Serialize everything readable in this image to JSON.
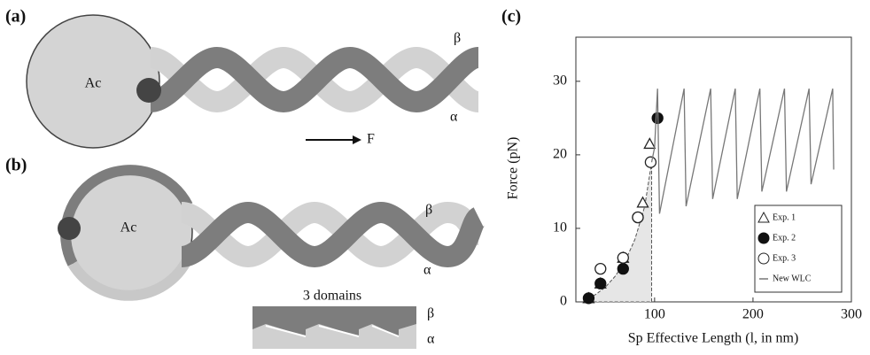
{
  "panels": {
    "a": {
      "label": "(a)",
      "ac": "Ac",
      "beta": "β",
      "alpha": "α",
      "force": "F"
    },
    "b": {
      "label": "(b)",
      "ac": "Ac",
      "beta": "β",
      "alpha": "α",
      "domains": "3 domains",
      "domain_beta": "β",
      "domain_alpha": "α"
    }
  },
  "chart_data": {
    "type": "scatter",
    "label": "(c)",
    "xlabel": "Sp Effective Length (l, in nm)",
    "ylabel": "Force (pN)",
    "xlim": [
      20,
      300
    ],
    "xticks": [
      100,
      200,
      300
    ],
    "ylim": [
      0,
      36
    ],
    "yticks": [
      0,
      10,
      20,
      30
    ],
    "legend": "lower right",
    "series": [
      {
        "name": "Exp. 1",
        "marker": "triangle-open",
        "color": "#222",
        "x": [
          33,
          45,
          68,
          88,
          95
        ],
        "values": [
          0.5,
          2.5,
          6,
          13.5,
          21.5
        ]
      },
      {
        "name": "Exp. 2",
        "marker": "circle-filled",
        "color": "#111",
        "x": [
          33,
          45,
          68,
          83,
          103
        ],
        "values": [
          0.5,
          2.5,
          4.5,
          11.5,
          25
        ]
      },
      {
        "name": "Exp. 3",
        "marker": "circle-open",
        "color": "#222",
        "x": [
          45,
          68,
          83,
          96
        ],
        "values": [
          4.5,
          6,
          11.5,
          19
        ]
      },
      {
        "name": "New WLC",
        "marker": "line",
        "color": "#777",
        "x": [
          97,
          100,
          103,
          105,
          130,
          132,
          157,
          159,
          182,
          184,
          207,
          209,
          232,
          234,
          257,
          259,
          281,
          282
        ],
        "values": [
          19,
          21,
          29,
          12,
          29,
          13,
          29,
          14,
          29,
          14,
          29,
          15,
          29,
          15,
          29,
          16,
          29,
          18
        ]
      }
    ],
    "fit": {
      "x": [
        30,
        40,
        50,
        60,
        70,
        80,
        90,
        97
      ],
      "values": [
        0.3,
        1,
        2,
        3.5,
        5.5,
        8.5,
        13,
        19
      ]
    }
  }
}
